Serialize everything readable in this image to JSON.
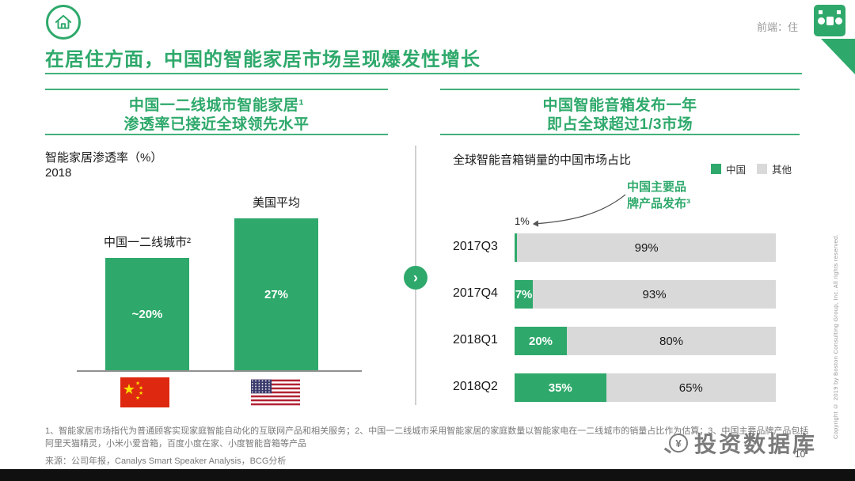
{
  "colors": {
    "accent": "#2EA96B",
    "bar_gray": "#D9D9D9",
    "footnote_gray": "#7A7A7A"
  },
  "icons": {
    "arrow_right": "›",
    "magnifier_currency": "¥"
  },
  "header": {
    "corner_tag": "前端：住",
    "title": "在居住方面，中国的智能家居市场呈现爆发性增长"
  },
  "left_panel": {
    "kicker_line1": "中国一二线城市智能家居¹",
    "kicker_line2": "渗透率已接近全球领先水平",
    "chart_title": "智能家居渗透率（%）",
    "chart_subtitle": "2018"
  },
  "right_panel": {
    "kicker_line1": "中国智能音箱发布一年",
    "kicker_line2": "即占全球超过1/3市场",
    "chart_title": "全球智能音箱销量的中国市场占比",
    "legend": [
      {
        "label": "中国",
        "color": "#2EA96B"
      },
      {
        "label": "其他",
        "color": "#D9D9D9"
      }
    ],
    "annotation_line1": "中国主要品",
    "annotation_line2": "牌产品发布³"
  },
  "chart_data": [
    {
      "type": "bar",
      "title": "智能家居渗透率（%） 2018",
      "categories": [
        "中国一二线城市²",
        "美国平均"
      ],
      "values": [
        20,
        27
      ],
      "value_labels": [
        "~20%",
        "27%"
      ],
      "ylim": [
        0,
        30
      ],
      "bar_color": "#2EA96B",
      "category_flags": [
        "china-flag",
        "us-flag"
      ]
    },
    {
      "type": "bar",
      "orientation": "horizontal_stacked",
      "title": "全球智能音箱销量的中国市场占比",
      "categories": [
        "2017Q3",
        "2017Q4",
        "2018Q1",
        "2018Q2"
      ],
      "series": [
        {
          "name": "中国",
          "color": "#2EA96B",
          "values": [
            1,
            7,
            20,
            35
          ],
          "labels": [
            "1%",
            "7%",
            "20%",
            "35%"
          ]
        },
        {
          "name": "其他",
          "color": "#D9D9D9",
          "values": [
            99,
            93,
            80,
            65
          ],
          "labels": [
            "99%",
            "93%",
            "80%",
            "65%"
          ]
        }
      ],
      "xlim": [
        0,
        100
      ],
      "callout": "1%",
      "annotation": "中国主要品牌产品发布³",
      "legend_position": "top-right"
    }
  ],
  "footer": {
    "note_line1": "1、智能家居市场指代为普通顾客实现家庭智能自动化的互联网产品和相关服务；2、中国一二线城市采用智能家居的家庭数量以智能家电在一二线城市的销量占比作为估算；3、中国主要品牌产品包括",
    "note_line2": "阿里天猫精灵，小米小爱音箱，百度小度在家、小度智能音箱等产品",
    "source": "来源：公司年报，Canalys Smart Speaker Analysis，BCG分析",
    "page_number": "10",
    "watermark": "投资数据库",
    "copyright": "Copyright © 2019 by Boston Consulting Group, Inc. All rights reserved."
  }
}
